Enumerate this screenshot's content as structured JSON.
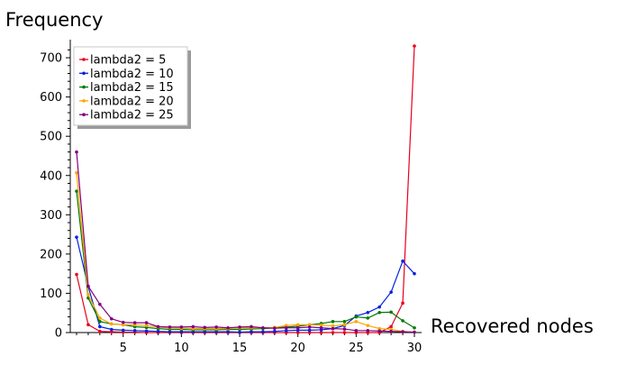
{
  "chart_data": {
    "type": "line",
    "xlabel": "Recovered nodes",
    "ylabel": "Frequency",
    "xlim": [
      0,
      31
    ],
    "ylim": [
      0,
      730
    ],
    "xticks": [
      5,
      10,
      15,
      20,
      25,
      30
    ],
    "yticks": [
      0,
      100,
      200,
      300,
      400,
      500,
      600,
      700
    ],
    "grid": false,
    "legend_position": "top-left",
    "x": [
      1,
      2,
      3,
      4,
      5,
      6,
      7,
      8,
      9,
      10,
      11,
      12,
      13,
      14,
      15,
      16,
      17,
      18,
      19,
      20,
      21,
      22,
      23,
      24,
      25,
      26,
      27,
      28,
      29,
      30
    ],
    "series": [
      {
        "name": "lambda2 = 5",
        "color": "#e8001c",
        "values": [
          148,
          20,
          3,
          2,
          1,
          1,
          0,
          0,
          0,
          0,
          0,
          0,
          0,
          0,
          0,
          0,
          0,
          0,
          0,
          0,
          0,
          0,
          0,
          0,
          0,
          0,
          0,
          15,
          75,
          730
        ]
      },
      {
        "name": "lambda2 = 10",
        "color": "#0022e0",
        "values": [
          243,
          117,
          15,
          8,
          6,
          5,
          4,
          3,
          2,
          2,
          2,
          2,
          2,
          2,
          1,
          2,
          2,
          3,
          5,
          6,
          6,
          7,
          10,
          18,
          42,
          51,
          65,
          103,
          182,
          150
        ]
      },
      {
        "name": "lambda2 = 15",
        "color": "#007a00",
        "values": [
          360,
          88,
          28,
          22,
          20,
          15,
          13,
          10,
          8,
          8,
          7,
          7,
          7,
          8,
          8,
          9,
          10,
          12,
          14,
          16,
          20,
          23,
          28,
          28,
          40,
          37,
          51,
          52,
          30,
          12
        ]
      },
      {
        "name": "lambda2 = 20",
        "color": "#ffa500",
        "values": [
          407,
          96,
          37,
          22,
          20,
          20,
          18,
          14,
          12,
          11,
          10,
          10,
          10,
          10,
          12,
          12,
          12,
          13,
          18,
          20,
          20,
          19,
          17,
          20,
          28,
          18,
          10,
          8,
          3,
          1
        ]
      },
      {
        "name": "lambda2 = 25",
        "color": "#800080",
        "values": [
          460,
          118,
          72,
          35,
          26,
          25,
          25,
          15,
          14,
          14,
          15,
          13,
          14,
          12,
          14,
          15,
          12,
          11,
          12,
          12,
          14,
          12,
          10,
          9,
          5,
          5,
          4,
          3,
          2,
          1
        ]
      }
    ]
  }
}
